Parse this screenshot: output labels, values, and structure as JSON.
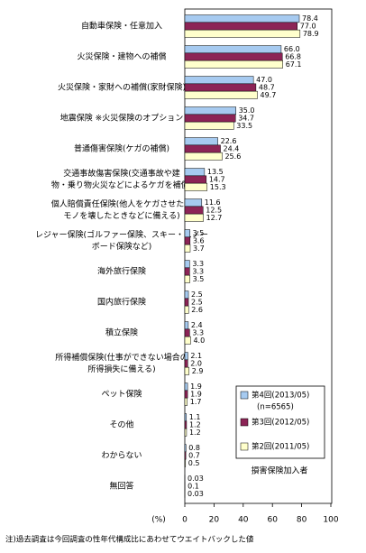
{
  "chart_data": {
    "type": "hbar",
    "categories": [
      [
        "自動車保険・任意加入"
      ],
      [
        "火災保険・建物への補償"
      ],
      [
        "火災保険・家財への補償(家財保険)"
      ],
      [
        "地震保険 ※火災保険のオプション"
      ],
      [
        "普通傷害保険(ケガの補償)"
      ],
      [
        "交通事故傷害保険(交通事故や建",
        "物・乗り物火災などによるケガを補償)"
      ],
      [
        "個人賠償責任保険(他人をケガさせたり",
        "モノを壊したときなどに備える)"
      ],
      [
        "レジャー保険(ゴルファー保険、スキー・スノー",
        "ボード保険など)"
      ],
      [
        "海外旅行保険"
      ],
      [
        "国内旅行保険"
      ],
      [
        "積立保険"
      ],
      [
        "所得補償保険(仕事ができない場合の",
        "所得損失に備える)"
      ],
      [
        "ペット保険"
      ],
      [
        "その他"
      ],
      [
        "わからない"
      ],
      [
        "無回答"
      ]
    ],
    "series": [
      {
        "name": "第4回(2013/05)",
        "color": "#a6caf0",
        "values": [
          78.4,
          66.0,
          47.0,
          35.0,
          22.6,
          13.5,
          11.6,
          3.5,
          3.3,
          2.5,
          2.4,
          2.1,
          1.9,
          1.1,
          0.8,
          0.03
        ],
        "value_labels": [
          "78.4",
          "66.0",
          "47.0",
          "35.0",
          "22.6",
          "13.5",
          "11.6",
          "3.5",
          "3.3",
          "2.5",
          "2.4",
          "2.1",
          "1.9",
          "1.1",
          "0.8",
          "0.03"
        ]
      },
      {
        "name": "第3回(2012/05)",
        "color": "#8c2456",
        "values": [
          77.0,
          66.8,
          48.7,
          34.7,
          24.4,
          14.7,
          12.5,
          3.6,
          3.3,
          2.5,
          3.3,
          2.0,
          1.9,
          1.2,
          0.7,
          0.1
        ],
        "value_labels": [
          "77.0",
          "66.8",
          "48.7",
          "34.7",
          "24.4",
          "14.7",
          "12.5",
          "3.6",
          "3.3",
          "2.5",
          "3.3",
          "2.0",
          "1.9",
          "1.2",
          "0.7",
          "0.1"
        ]
      },
      {
        "name": "第2回(2011/05)",
        "color": "#ffffcc",
        "values": [
          78.9,
          67.1,
          49.7,
          33.5,
          25.6,
          15.3,
          12.7,
          3.7,
          3.5,
          2.6,
          4.0,
          2.9,
          1.7,
          1.2,
          0.5,
          0.03
        ],
        "value_labels": [
          "78.9",
          "67.1",
          "49.7",
          "33.5",
          "25.6",
          "15.3",
          "12.7",
          "3.7",
          "3.5",
          "2.6",
          "4.0",
          "2.9",
          "1.7",
          "1.2",
          "0.5",
          "0.03"
        ]
      }
    ],
    "legend_note": "(n=6565)",
    "legend_caption": "損害保険加入者",
    "x_label": "(%)",
    "xlim": [
      0,
      100
    ],
    "xticks": [
      0,
      20,
      40,
      60,
      80,
      100
    ],
    "note": "注)過去調査は今回調査の性年代構成比にあわせてウエイトバックした値"
  }
}
